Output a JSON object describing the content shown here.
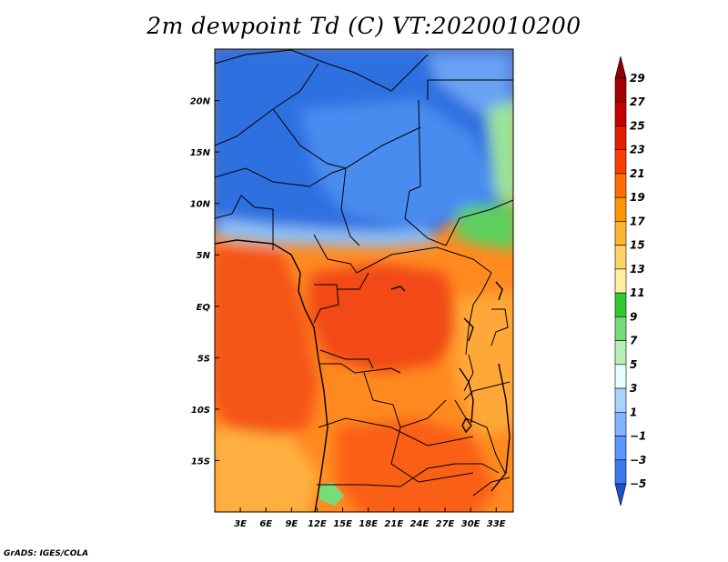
{
  "title": "2m dewpoint Td (C) VT:2020010200",
  "credit": "GrADS: IGES/COLA",
  "map": {
    "lon_range": [
      0,
      35
    ],
    "lat_range": [
      -20,
      25
    ],
    "x_ticks": [
      {
        "value": 3,
        "label": "3E"
      },
      {
        "value": 6,
        "label": "6E"
      },
      {
        "value": 9,
        "label": "9E"
      },
      {
        "value": 12,
        "label": "12E"
      },
      {
        "value": 15,
        "label": "15E"
      },
      {
        "value": 18,
        "label": "18E"
      },
      {
        "value": 21,
        "label": "21E"
      },
      {
        "value": 24,
        "label": "24E"
      },
      {
        "value": 27,
        "label": "27E"
      },
      {
        "value": 30,
        "label": "30E"
      },
      {
        "value": 33,
        "label": "33E"
      }
    ],
    "y_ticks": [
      {
        "value": 20,
        "label": "20N"
      },
      {
        "value": 15,
        "label": "15N"
      },
      {
        "value": 10,
        "label": "10N"
      },
      {
        "value": 5,
        "label": "5N"
      },
      {
        "value": 0,
        "label": "EQ"
      },
      {
        "value": -5,
        "label": "5S"
      },
      {
        "value": -10,
        "label": "10S"
      },
      {
        "value": -15,
        "label": "15S"
      }
    ]
  },
  "colorbar": {
    "levels": [
      {
        "label": "29",
        "color": "#a50000"
      },
      {
        "label": "27",
        "color": "#c80000"
      },
      {
        "label": "25",
        "color": "#e61e00"
      },
      {
        "label": "23",
        "color": "#ff3c00"
      },
      {
        "label": "21",
        "color": "#ff6e00"
      },
      {
        "label": "19",
        "color": "#ff9600"
      },
      {
        "label": "17",
        "color": "#ffb432"
      },
      {
        "label": "15",
        "color": "#ffd264"
      },
      {
        "label": "13",
        "color": "#fff0a0"
      },
      {
        "label": "11",
        "color": "#32c832"
      },
      {
        "label": "9",
        "color": "#78dc78"
      },
      {
        "label": "7",
        "color": "#b4f0b4"
      },
      {
        "label": "5",
        "color": "#e6ffff"
      },
      {
        "label": "3",
        "color": "#aad2ff"
      },
      {
        "label": "1",
        "color": "#82b4ff"
      },
      {
        "label": "−1",
        "color": "#5a96ff"
      },
      {
        "label": "−3",
        "color": "#3c78f0"
      },
      {
        "label": "−5",
        "color": "#2864dc"
      }
    ],
    "top_color": "#8c0000",
    "bottom_color": "#1e50c8"
  },
  "field_colors": {
    "dry_blue": "#2f6fe0",
    "mid_blue": "#4a8cf0",
    "light_blue": "#7fb3f5",
    "green": "#6fd66f",
    "light_green": "#b4f0b4",
    "orange": "#ff9a28",
    "deep_orange": "#ff6a14",
    "red_orange": "#f84a10",
    "light_orange": "#ffb848"
  }
}
